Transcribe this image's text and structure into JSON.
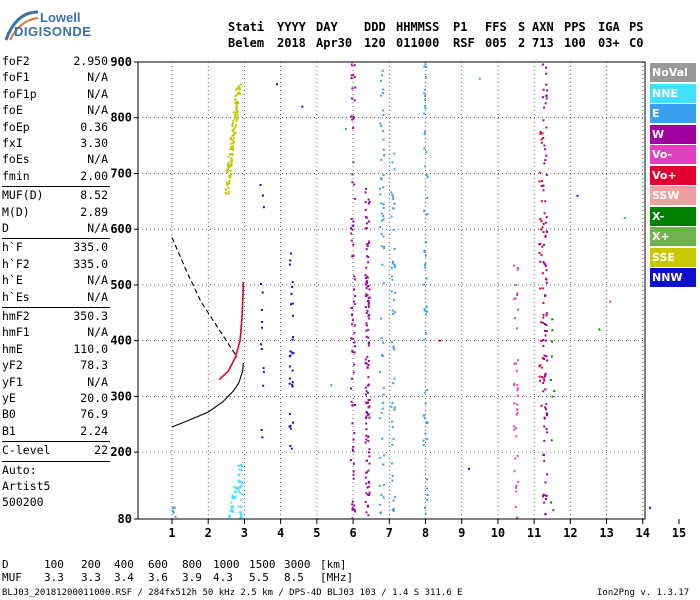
{
  "logo": {
    "line1": "Lowell",
    "line2": "DIGISONDE"
  },
  "header": {
    "labels": [
      "Stati",
      "YYYY",
      "DAY",
      "DDD",
      "HHMMSS",
      "P1",
      "FFS",
      "S",
      "AXN",
      "PPS",
      "IGA",
      "PS"
    ],
    "values": [
      "Belem",
      "2018",
      "Apr30",
      "120",
      "011000",
      "RSF",
      "005",
      "2",
      "713",
      "100",
      "03+",
      "C0"
    ]
  },
  "params": [
    {
      "k": "foF2",
      "v": "2.950"
    },
    {
      "k": "foF1",
      "v": "N/A"
    },
    {
      "k": "foF1p",
      "v": "N/A"
    },
    {
      "k": "foE",
      "v": "N/A"
    },
    {
      "k": "foEp",
      "v": "0.36"
    },
    {
      "k": "fxI",
      "v": "3.30"
    },
    {
      "k": "foEs",
      "v": "N/A"
    },
    {
      "k": "fmin",
      "v": "2.00"
    },
    {
      "k": "MUF(D)",
      "v": "8.52"
    },
    {
      "k": "M(D)",
      "v": "2.89"
    },
    {
      "k": "D",
      "v": "N/A"
    },
    {
      "k": "h`F",
      "v": "335.0"
    },
    {
      "k": "h`F2",
      "v": "335.0"
    },
    {
      "k": "h`E",
      "v": "N/A"
    },
    {
      "k": "h`Es",
      "v": "N/A"
    },
    {
      "k": "hmF2",
      "v": "350.3"
    },
    {
      "k": "hmF1",
      "v": "N/A"
    },
    {
      "k": "hmE",
      "v": "110.0"
    },
    {
      "k": "yF2",
      "v": "78.3"
    },
    {
      "k": "yF1",
      "v": "N/A"
    },
    {
      "k": "yE",
      "v": "20.0"
    },
    {
      "k": "B0",
      "v": "76.9"
    },
    {
      "k": "B1",
      "v": "2.24"
    },
    {
      "k": "C-level",
      "v": "22"
    },
    {
      "k": "Auto:",
      "v": ""
    },
    {
      "k": "Artist5",
      "v": ""
    },
    {
      "k": "500200",
      "v": ""
    }
  ],
  "legend": [
    {
      "label": "NoVal",
      "color": "#999999"
    },
    {
      "label": "NNE",
      "color": "#40e0ff"
    },
    {
      "label": "E",
      "color": "#3aa0f0"
    },
    {
      "label": "W",
      "color": "#a000a0"
    },
    {
      "label": "Vo-",
      "color": "#e040c0"
    },
    {
      "label": "Vo+",
      "color": "#e00030"
    },
    {
      "label": "SSW",
      "color": "#f0a0a0"
    },
    {
      "label": "X-",
      "color": "#008000"
    },
    {
      "label": "X+",
      "color": "#70b050"
    },
    {
      "label": "SSE",
      "color": "#c8c800"
    },
    {
      "label": "NNW",
      "color": "#1010d0"
    }
  ],
  "chart_data": {
    "type": "scatter",
    "xlim": [
      1,
      15
    ],
    "ylim": [
      80,
      900
    ],
    "x_ticks": [
      "1",
      "2",
      "3",
      "4",
      "5",
      "6",
      "7",
      "8",
      "9",
      "10",
      "11",
      "12",
      "13",
      "14",
      "15"
    ],
    "y_ticks": [
      "80",
      "200",
      "300",
      "400",
      "500",
      "600",
      "700",
      "800",
      "900"
    ],
    "traces": [
      {
        "name": "virtual",
        "style": "solid",
        "points": [
          [
            1,
            245
          ],
          [
            1.5,
            258
          ],
          [
            2,
            272
          ],
          [
            2.4,
            290
          ],
          [
            2.7,
            310
          ],
          [
            2.85,
            325
          ],
          [
            2.95,
            345
          ],
          [
            2.97,
            360
          ]
        ]
      },
      {
        "name": "dashed",
        "style": "dashed",
        "points": [
          [
            1,
            585
          ],
          [
            1.4,
            525
          ],
          [
            1.8,
            470
          ],
          [
            2.2,
            430
          ],
          [
            2.5,
            400
          ],
          [
            2.7,
            380
          ],
          [
            2.8,
            370
          ]
        ]
      },
      {
        "name": "trace",
        "style": "solid",
        "points": [
          [
            2.3,
            330
          ],
          [
            2.55,
            345
          ],
          [
            2.75,
            370
          ],
          [
            2.88,
            400
          ],
          [
            2.93,
            440
          ],
          [
            2.96,
            480
          ],
          [
            2.97,
            505
          ]
        ]
      }
    ],
    "clusters": [
      {
        "series": "SSE",
        "x": 2.5,
        "y": [
          660,
          860
        ],
        "slant": 0.35,
        "n": 120
      },
      {
        "series": "NNE",
        "x": 2.6,
        "y": [
          80,
          180
        ],
        "slant": 0.3,
        "n": 40
      },
      {
        "series": "NNE",
        "x": 2.9,
        "y": [
          80,
          150
        ],
        "slant": 0,
        "n": 20
      },
      {
        "series": "E",
        "x": 1.05,
        "y": [
          80,
          110
        ],
        "slant": 0,
        "n": 6
      },
      {
        "series": "W",
        "x": 6.0,
        "y": [
          80,
          900
        ],
        "slant": 0,
        "n": 80
      },
      {
        "series": "W",
        "x": 6.4,
        "y": [
          80,
          680
        ],
        "slant": 0,
        "n": 120
      },
      {
        "series": "E",
        "x": 6.8,
        "y": [
          80,
          900
        ],
        "slant": 0,
        "n": 60
      },
      {
        "series": "E",
        "x": 7.1,
        "y": [
          80,
          760
        ],
        "slant": 0,
        "n": 50
      },
      {
        "series": "E",
        "x": 8.0,
        "y": [
          80,
          900
        ],
        "slant": 0,
        "n": 60
      },
      {
        "series": "NNW",
        "x": 4.3,
        "y": [
          200,
          560
        ],
        "slant": 0,
        "n": 30
      },
      {
        "series": "NNW",
        "x": 3.5,
        "y": [
          220,
          700
        ],
        "slant": 0,
        "n": 15
      },
      {
        "series": "W",
        "x": 11.3,
        "y": [
          80,
          900
        ],
        "slant": 0,
        "n": 90
      },
      {
        "series": "Vo-",
        "x": 10.5,
        "y": [
          80,
          560
        ],
        "slant": 0,
        "n": 40
      },
      {
        "series": "Vo+",
        "x": 11.2,
        "y": [
          280,
          800
        ],
        "slant": 0,
        "n": 40
      },
      {
        "series": "NNW",
        "x": 14.5,
        "y": [
          180,
          560
        ],
        "slant": 0,
        "n": 15
      },
      {
        "series": "X-",
        "x": 11.5,
        "y": [
          80,
          500
        ],
        "slant": 0,
        "n": 10
      }
    ]
  },
  "freq_scale": {
    "d_label": "D",
    "d_values": [
      "100",
      "200",
      "400",
      "600",
      "800",
      "1000",
      "1500",
      "3000",
      "[km]"
    ],
    "muf_label": "MUF",
    "muf_values": [
      "3.3",
      "3.3",
      "3.4",
      "3.6",
      "3.9",
      "4.3",
      "5.5",
      "8.5",
      "[MHz]"
    ]
  },
  "footer": {
    "left": "BLJ03_20181200011000.RSF / 284fx512h 50 kHz 2.5 km / DPS-4D BLJ03 103 / 1.4 S 311.6 E",
    "right": "Ion2Png v. 1.3.17"
  }
}
